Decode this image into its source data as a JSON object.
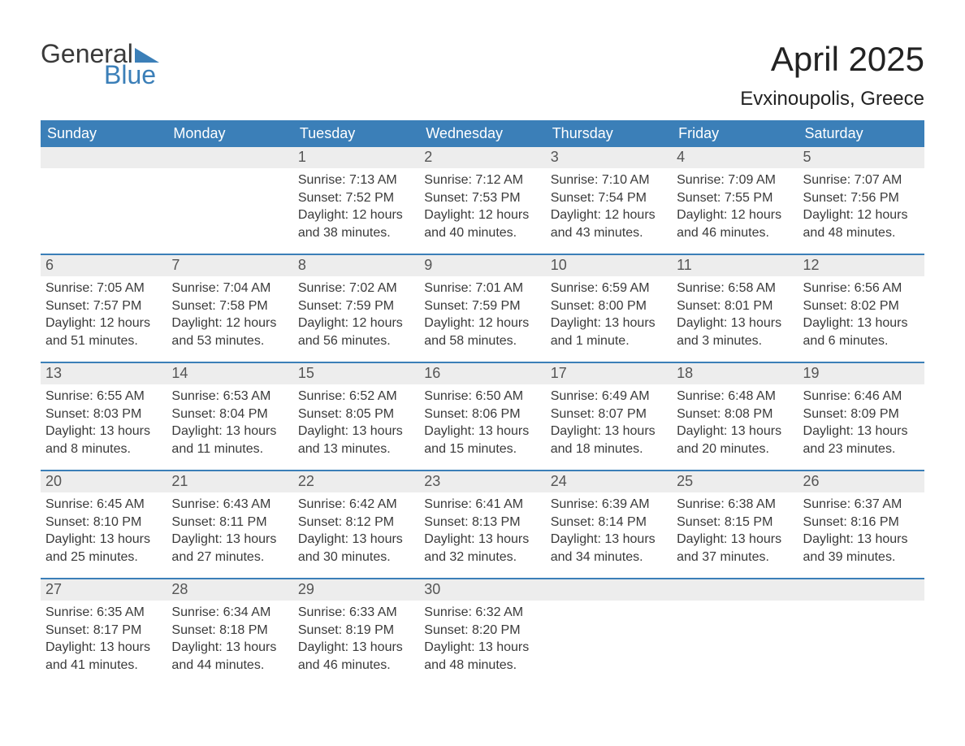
{
  "logo": {
    "word1": "General",
    "word2": "Blue"
  },
  "title": "April 2025",
  "location": "Evxinoupolis, Greece",
  "colors": {
    "header_bg": "#3b7fb8",
    "header_text": "#ffffff",
    "daynum_bg": "#ededed",
    "text": "#3a3a3a",
    "page_bg": "#ffffff"
  },
  "typography": {
    "title_fontsize": 42,
    "location_fontsize": 24,
    "dayheader_fontsize": 18,
    "body_fontsize": 16
  },
  "day_headers": [
    "Sunday",
    "Monday",
    "Tuesday",
    "Wednesday",
    "Thursday",
    "Friday",
    "Saturday"
  ],
  "weeks": [
    [
      {
        "n": "",
        "sunrise": "",
        "sunset": "",
        "daylight": ""
      },
      {
        "n": "",
        "sunrise": "",
        "sunset": "",
        "daylight": ""
      },
      {
        "n": "1",
        "sunrise": "Sunrise: 7:13 AM",
        "sunset": "Sunset: 7:52 PM",
        "daylight": "Daylight: 12 hours and 38 minutes."
      },
      {
        "n": "2",
        "sunrise": "Sunrise: 7:12 AM",
        "sunset": "Sunset: 7:53 PM",
        "daylight": "Daylight: 12 hours and 40 minutes."
      },
      {
        "n": "3",
        "sunrise": "Sunrise: 7:10 AM",
        "sunset": "Sunset: 7:54 PM",
        "daylight": "Daylight: 12 hours and 43 minutes."
      },
      {
        "n": "4",
        "sunrise": "Sunrise: 7:09 AM",
        "sunset": "Sunset: 7:55 PM",
        "daylight": "Daylight: 12 hours and 46 minutes."
      },
      {
        "n": "5",
        "sunrise": "Sunrise: 7:07 AM",
        "sunset": "Sunset: 7:56 PM",
        "daylight": "Daylight: 12 hours and 48 minutes."
      }
    ],
    [
      {
        "n": "6",
        "sunrise": "Sunrise: 7:05 AM",
        "sunset": "Sunset: 7:57 PM",
        "daylight": "Daylight: 12 hours and 51 minutes."
      },
      {
        "n": "7",
        "sunrise": "Sunrise: 7:04 AM",
        "sunset": "Sunset: 7:58 PM",
        "daylight": "Daylight: 12 hours and 53 minutes."
      },
      {
        "n": "8",
        "sunrise": "Sunrise: 7:02 AM",
        "sunset": "Sunset: 7:59 PM",
        "daylight": "Daylight: 12 hours and 56 minutes."
      },
      {
        "n": "9",
        "sunrise": "Sunrise: 7:01 AM",
        "sunset": "Sunset: 7:59 PM",
        "daylight": "Daylight: 12 hours and 58 minutes."
      },
      {
        "n": "10",
        "sunrise": "Sunrise: 6:59 AM",
        "sunset": "Sunset: 8:00 PM",
        "daylight": "Daylight: 13 hours and 1 minute."
      },
      {
        "n": "11",
        "sunrise": "Sunrise: 6:58 AM",
        "sunset": "Sunset: 8:01 PM",
        "daylight": "Daylight: 13 hours and 3 minutes."
      },
      {
        "n": "12",
        "sunrise": "Sunrise: 6:56 AM",
        "sunset": "Sunset: 8:02 PM",
        "daylight": "Daylight: 13 hours and 6 minutes."
      }
    ],
    [
      {
        "n": "13",
        "sunrise": "Sunrise: 6:55 AM",
        "sunset": "Sunset: 8:03 PM",
        "daylight": "Daylight: 13 hours and 8 minutes."
      },
      {
        "n": "14",
        "sunrise": "Sunrise: 6:53 AM",
        "sunset": "Sunset: 8:04 PM",
        "daylight": "Daylight: 13 hours and 11 minutes."
      },
      {
        "n": "15",
        "sunrise": "Sunrise: 6:52 AM",
        "sunset": "Sunset: 8:05 PM",
        "daylight": "Daylight: 13 hours and 13 minutes."
      },
      {
        "n": "16",
        "sunrise": "Sunrise: 6:50 AM",
        "sunset": "Sunset: 8:06 PM",
        "daylight": "Daylight: 13 hours and 15 minutes."
      },
      {
        "n": "17",
        "sunrise": "Sunrise: 6:49 AM",
        "sunset": "Sunset: 8:07 PM",
        "daylight": "Daylight: 13 hours and 18 minutes."
      },
      {
        "n": "18",
        "sunrise": "Sunrise: 6:48 AM",
        "sunset": "Sunset: 8:08 PM",
        "daylight": "Daylight: 13 hours and 20 minutes."
      },
      {
        "n": "19",
        "sunrise": "Sunrise: 6:46 AM",
        "sunset": "Sunset: 8:09 PM",
        "daylight": "Daylight: 13 hours and 23 minutes."
      }
    ],
    [
      {
        "n": "20",
        "sunrise": "Sunrise: 6:45 AM",
        "sunset": "Sunset: 8:10 PM",
        "daylight": "Daylight: 13 hours and 25 minutes."
      },
      {
        "n": "21",
        "sunrise": "Sunrise: 6:43 AM",
        "sunset": "Sunset: 8:11 PM",
        "daylight": "Daylight: 13 hours and 27 minutes."
      },
      {
        "n": "22",
        "sunrise": "Sunrise: 6:42 AM",
        "sunset": "Sunset: 8:12 PM",
        "daylight": "Daylight: 13 hours and 30 minutes."
      },
      {
        "n": "23",
        "sunrise": "Sunrise: 6:41 AM",
        "sunset": "Sunset: 8:13 PM",
        "daylight": "Daylight: 13 hours and 32 minutes."
      },
      {
        "n": "24",
        "sunrise": "Sunrise: 6:39 AM",
        "sunset": "Sunset: 8:14 PM",
        "daylight": "Daylight: 13 hours and 34 minutes."
      },
      {
        "n": "25",
        "sunrise": "Sunrise: 6:38 AM",
        "sunset": "Sunset: 8:15 PM",
        "daylight": "Daylight: 13 hours and 37 minutes."
      },
      {
        "n": "26",
        "sunrise": "Sunrise: 6:37 AM",
        "sunset": "Sunset: 8:16 PM",
        "daylight": "Daylight: 13 hours and 39 minutes."
      }
    ],
    [
      {
        "n": "27",
        "sunrise": "Sunrise: 6:35 AM",
        "sunset": "Sunset: 8:17 PM",
        "daylight": "Daylight: 13 hours and 41 minutes."
      },
      {
        "n": "28",
        "sunrise": "Sunrise: 6:34 AM",
        "sunset": "Sunset: 8:18 PM",
        "daylight": "Daylight: 13 hours and 44 minutes."
      },
      {
        "n": "29",
        "sunrise": "Sunrise: 6:33 AM",
        "sunset": "Sunset: 8:19 PM",
        "daylight": "Daylight: 13 hours and 46 minutes."
      },
      {
        "n": "30",
        "sunrise": "Sunrise: 6:32 AM",
        "sunset": "Sunset: 8:20 PM",
        "daylight": "Daylight: 13 hours and 48 minutes."
      },
      {
        "n": "",
        "sunrise": "",
        "sunset": "",
        "daylight": ""
      },
      {
        "n": "",
        "sunrise": "",
        "sunset": "",
        "daylight": ""
      },
      {
        "n": "",
        "sunrise": "",
        "sunset": "",
        "daylight": ""
      }
    ]
  ]
}
